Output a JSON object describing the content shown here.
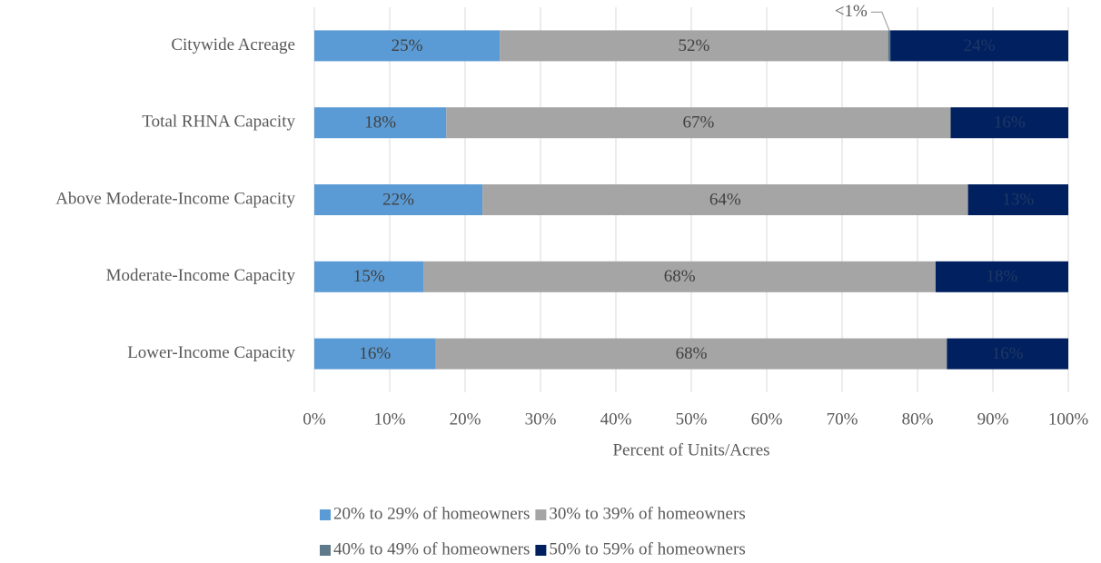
{
  "chart_data": {
    "type": "stacked-barh",
    "categories": [
      "Citywide Acreage",
      "Total RHNA Capacity",
      "Above Moderate-Income Capacity",
      "Moderate-Income Capacity",
      "Lower-Income Capacity"
    ],
    "series": [
      {
        "name": "20% to 29% of homeowners",
        "color": "#5b9bd5",
        "label_color": "#404040",
        "values": [
          24.6,
          17.5,
          22.3,
          14.5,
          16.1
        ],
        "value_labels": [
          "25%",
          "18%",
          "22%",
          "15%",
          "16%"
        ]
      },
      {
        "name": "30% to 39% of homeowners",
        "color": "#a5a5a5",
        "label_color": "#404040",
        "values": [
          51.5,
          66.9,
          64.4,
          67.9,
          67.8
        ],
        "value_labels": [
          "52%",
          "67%",
          "64%",
          "68%",
          "68%"
        ]
      },
      {
        "name": "40% to 49% of homeowners",
        "color": "#5f7a8a",
        "label_color": "#595959",
        "values": [
          0.3,
          null,
          null,
          null,
          null
        ],
        "value_labels": [
          "<1%",
          null,
          null,
          null,
          null
        ]
      },
      {
        "name": "50% to 59% of homeowners",
        "color": "#002060",
        "label_color": "#1f3864",
        "values": [
          23.6,
          15.6,
          13.3,
          17.6,
          16.1
        ],
        "value_labels": [
          "24%",
          "16%",
          "13%",
          "18%",
          "16%"
        ]
      }
    ],
    "xlabel": "Percent of Units/Acres",
    "xlim": [
      0,
      100
    ],
    "xticks": [
      {
        "value": 0,
        "label": "0%"
      },
      {
        "value": 10,
        "label": "10%"
      },
      {
        "value": 20,
        "label": "20%"
      },
      {
        "value": 30,
        "label": "30%"
      },
      {
        "value": 40,
        "label": "40%"
      },
      {
        "value": 50,
        "label": "50%"
      },
      {
        "value": 60,
        "label": "60%"
      },
      {
        "value": 70,
        "label": "70%"
      },
      {
        "value": 80,
        "label": "80%"
      },
      {
        "value": 90,
        "label": "90%"
      },
      {
        "value": 100,
        "label": "100%"
      }
    ],
    "grid": true,
    "legend": "bottom"
  }
}
